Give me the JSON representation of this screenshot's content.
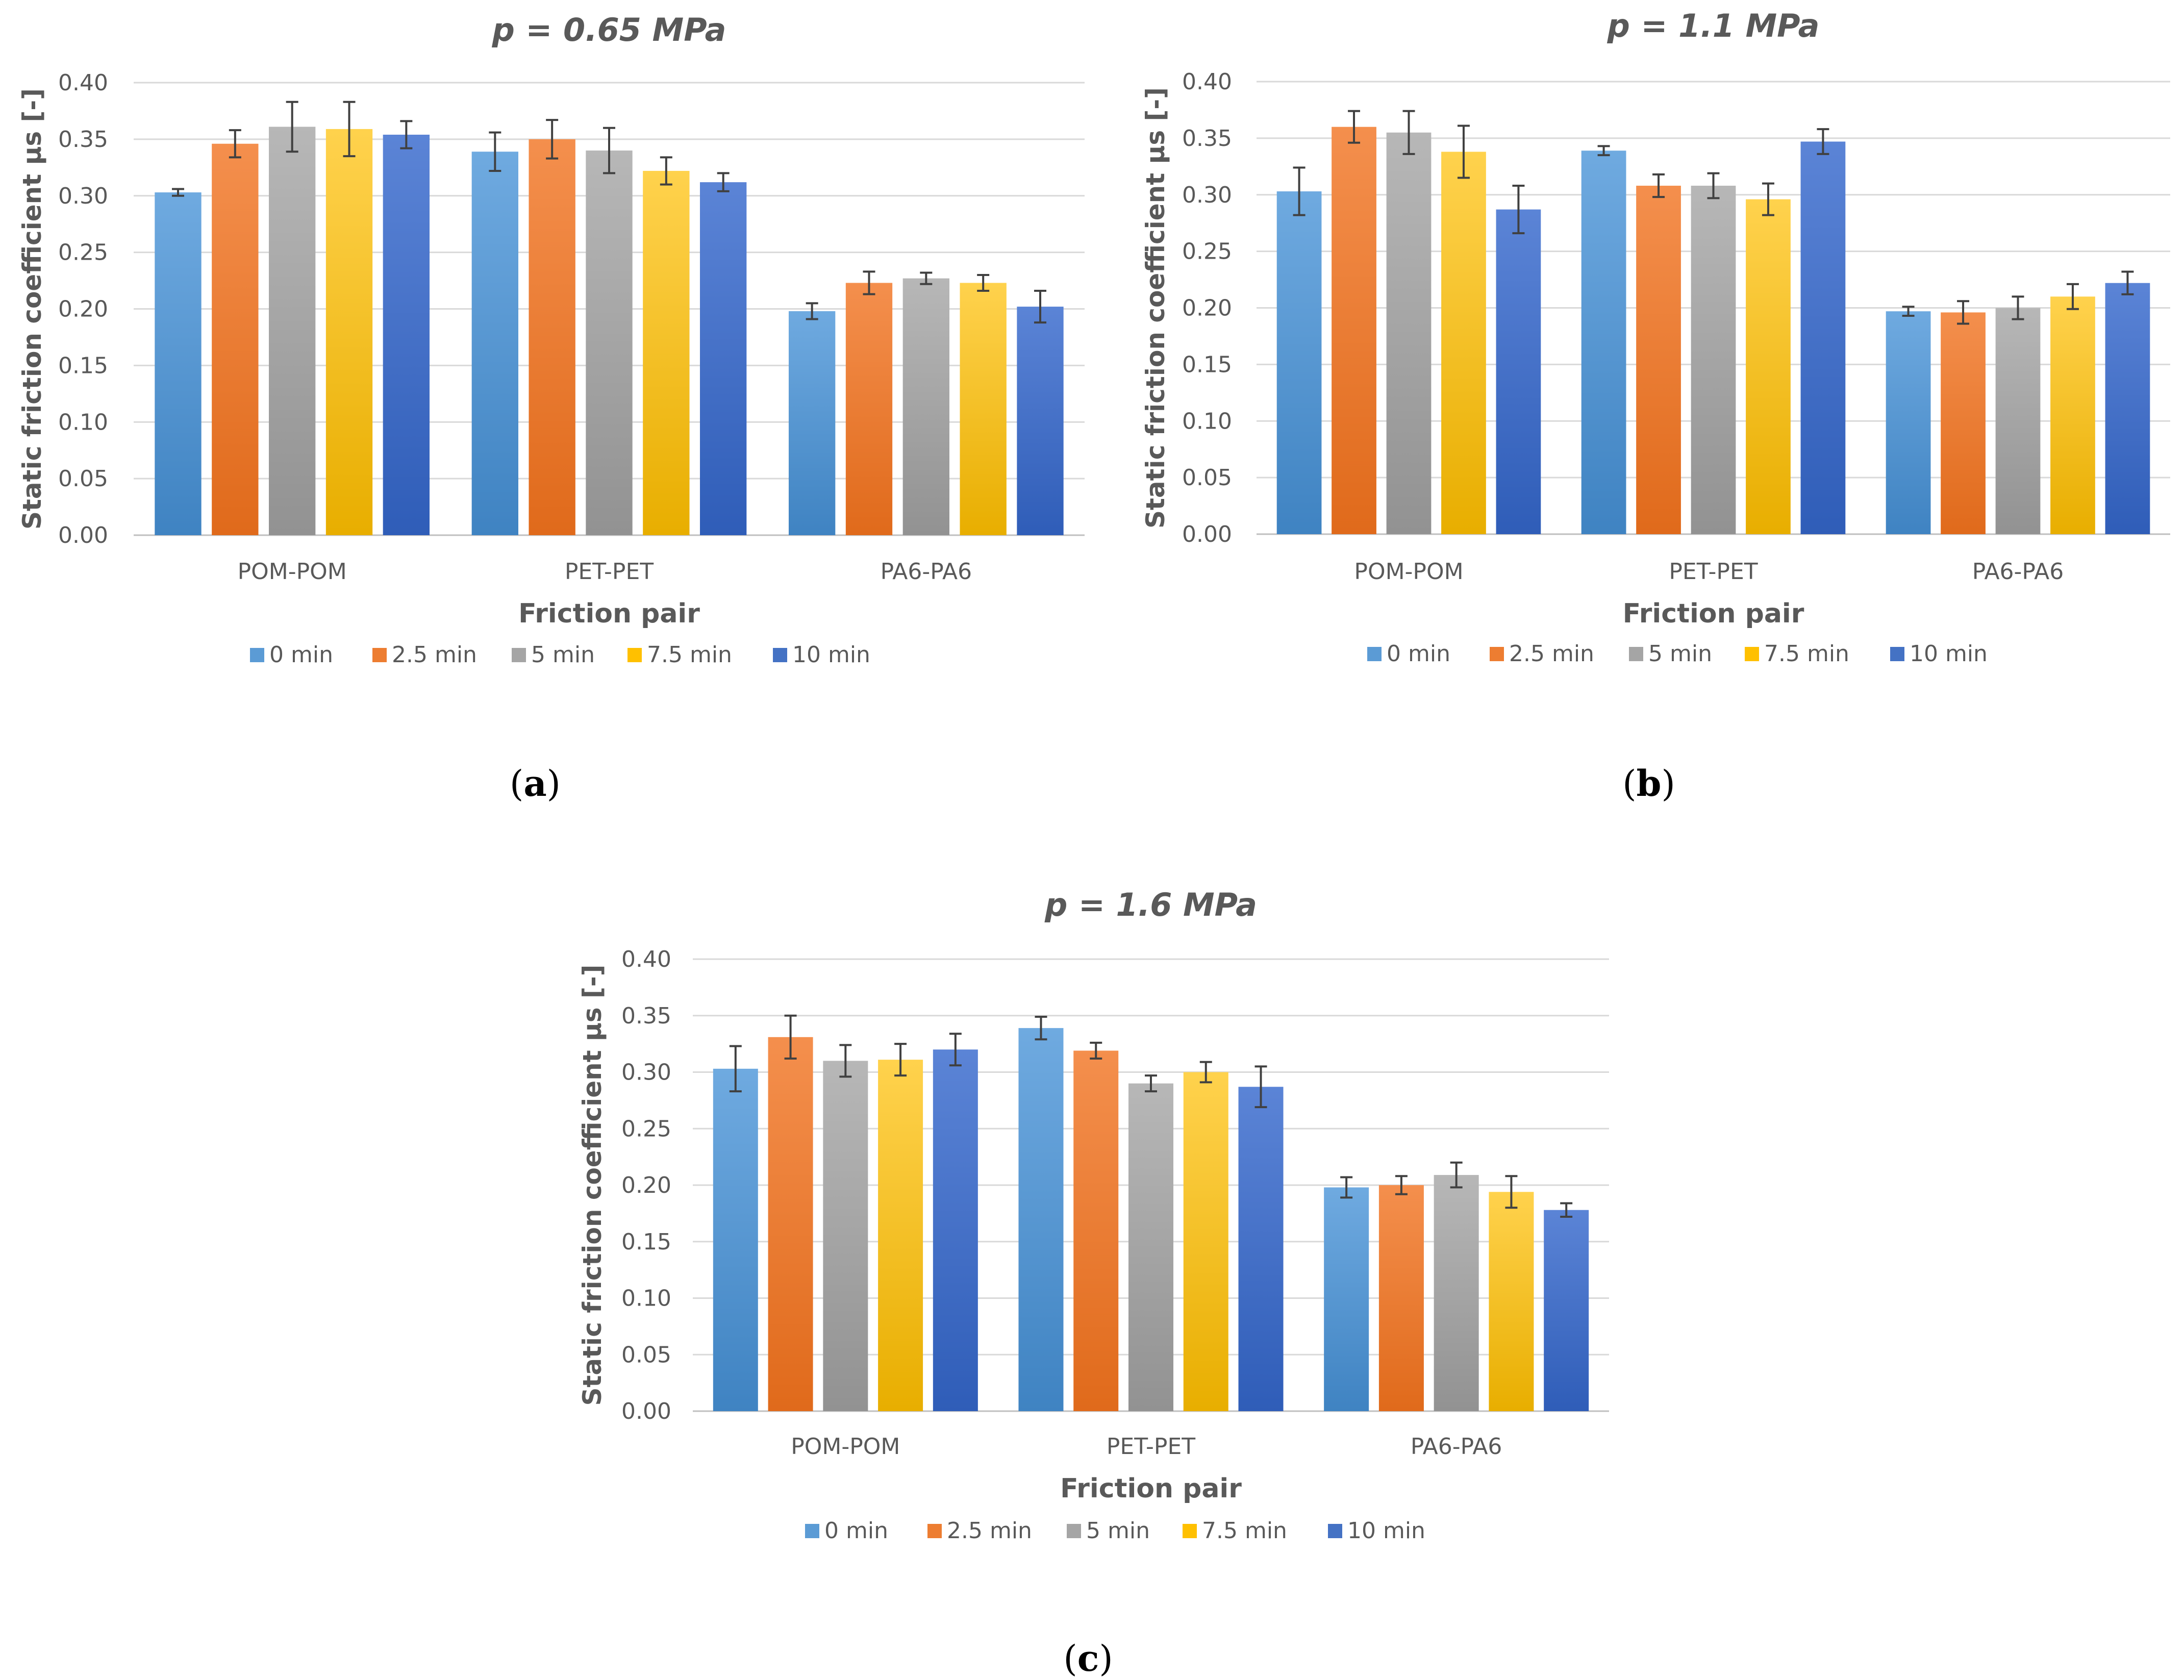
{
  "chart_data": [
    {
      "id": "a",
      "type": "bar",
      "title": "p = 0.65 MPa",
      "caption_open": "(",
      "caption_letter": "a",
      "caption_close": ")",
      "xlabel": "Friction pair",
      "ylabel": "Static friction coefficient μs [-]",
      "ylim": [
        0,
        0.4
      ],
      "yticks": [
        "0.00",
        "0.05",
        "0.10",
        "0.15",
        "0.20",
        "0.25",
        "0.30",
        "0.35",
        "0.40"
      ],
      "grid": true,
      "legend_position": "bottom",
      "categories": [
        "POM-POM",
        "PET-PET",
        "PA6-PA6"
      ],
      "series": [
        {
          "name": "0 min",
          "values": [
            0.303,
            0.339,
            0.198
          ],
          "errors": [
            0.003,
            0.017,
            0.007
          ]
        },
        {
          "name": "2.5 min",
          "values": [
            0.346,
            0.35,
            0.223
          ],
          "errors": [
            0.012,
            0.017,
            0.01
          ]
        },
        {
          "name": "5 min",
          "values": [
            0.361,
            0.34,
            0.227
          ],
          "errors": [
            0.022,
            0.02,
            0.005
          ]
        },
        {
          "name": "7.5 min",
          "values": [
            0.359,
            0.322,
            0.223
          ],
          "errors": [
            0.024,
            0.012,
            0.007
          ]
        },
        {
          "name": "10 min",
          "values": [
            0.354,
            0.312,
            0.202
          ],
          "errors": [
            0.012,
            0.008,
            0.014
          ]
        }
      ]
    },
    {
      "id": "b",
      "type": "bar",
      "title": "p = 1.1 MPa",
      "caption_open": "(",
      "caption_letter": "b",
      "caption_close": ")",
      "xlabel": "Friction pair",
      "ylabel": "Static friction coefficient μs [-]",
      "ylim": [
        0,
        0.4
      ],
      "yticks": [
        "0.00",
        "0.05",
        "0.10",
        "0.15",
        "0.20",
        "0.25",
        "0.30",
        "0.35",
        "0.40"
      ],
      "grid": true,
      "legend_position": "bottom",
      "categories": [
        "POM-POM",
        "PET-PET",
        "PA6-PA6"
      ],
      "series": [
        {
          "name": "0 min",
          "values": [
            0.303,
            0.339,
            0.197
          ],
          "errors": [
            0.021,
            0.004,
            0.004
          ]
        },
        {
          "name": "2.5 min",
          "values": [
            0.36,
            0.308,
            0.196
          ],
          "errors": [
            0.014,
            0.01,
            0.01
          ]
        },
        {
          "name": "5 min",
          "values": [
            0.355,
            0.308,
            0.2
          ],
          "errors": [
            0.019,
            0.011,
            0.01
          ]
        },
        {
          "name": "7.5 min",
          "values": [
            0.338,
            0.296,
            0.21
          ],
          "errors": [
            0.023,
            0.014,
            0.011
          ]
        },
        {
          "name": "10 min",
          "values": [
            0.287,
            0.347,
            0.222
          ],
          "errors": [
            0.021,
            0.011,
            0.01
          ]
        }
      ]
    },
    {
      "id": "c",
      "type": "bar",
      "title": "p = 1.6 MPa",
      "caption_open": "(",
      "caption_letter": "c",
      "caption_close": ")",
      "xlabel": "Friction pair",
      "ylabel": "Static friction coefficient μs [-]",
      "ylim": [
        0,
        0.4
      ],
      "yticks": [
        "0.00",
        "0.05",
        "0.10",
        "0.15",
        "0.20",
        "0.25",
        "0.30",
        "0.35",
        "0.40"
      ],
      "grid": true,
      "legend_position": "bottom",
      "categories": [
        "POM-POM",
        "PET-PET",
        "PA6-PA6"
      ],
      "series": [
        {
          "name": "0 min",
          "values": [
            0.303,
            0.339,
            0.198
          ],
          "errors": [
            0.02,
            0.01,
            0.009
          ]
        },
        {
          "name": "2.5 min",
          "values": [
            0.331,
            0.319,
            0.2
          ],
          "errors": [
            0.019,
            0.007,
            0.008
          ]
        },
        {
          "name": "5 min",
          "values": [
            0.31,
            0.29,
            0.209
          ],
          "errors": [
            0.014,
            0.007,
            0.011
          ]
        },
        {
          "name": "7.5 min",
          "values": [
            0.311,
            0.3,
            0.194
          ],
          "errors": [
            0.014,
            0.009,
            0.014
          ]
        },
        {
          "name": "10 min",
          "values": [
            0.32,
            0.287,
            0.178
          ],
          "errors": [
            0.014,
            0.018,
            0.006
          ]
        }
      ]
    }
  ],
  "colors": {
    "series": [
      "#5B9BD5",
      "#ED7D31",
      "#A5A5A5",
      "#FFC000",
      "#4472C4"
    ],
    "series_light": [
      "#6FAAE0",
      "#F48F4D",
      "#B7B7B7",
      "#FFD24D",
      "#5B84D6"
    ],
    "series_dark": [
      "#3F83C2",
      "#E06A1B",
      "#929292",
      "#E8AE00",
      "#2F5DB8"
    ],
    "axis_text": "#595959",
    "gridline": "#D9D9D9",
    "error_bar": "#404040",
    "caption": "#000000"
  }
}
